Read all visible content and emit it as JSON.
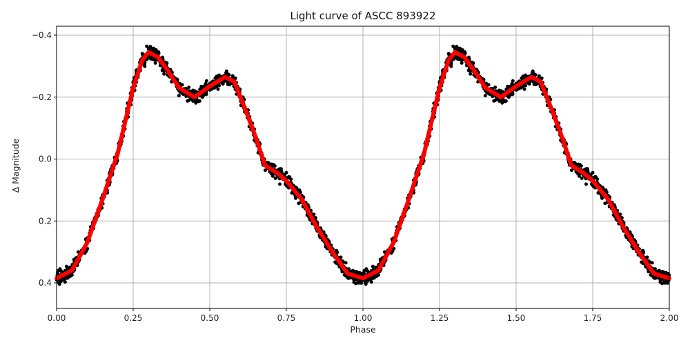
{
  "chart_data": {
    "type": "scatter",
    "title": "Light curve of ASCC 893922",
    "xlabel": "Phase",
    "ylabel": "Δ Magnitude",
    "xlim": [
      0.0,
      2.0
    ],
    "ylim": [
      0.47,
      -0.43
    ],
    "y_inverted": true,
    "grid": true,
    "legend": null,
    "x_ticks": [
      0.0,
      0.25,
      0.5,
      0.75,
      1.0,
      1.25,
      1.5,
      1.75,
      2.0
    ],
    "x_tick_labels": [
      "0.00",
      "0.25",
      "0.50",
      "0.75",
      "1.00",
      "1.25",
      "1.50",
      "1.75",
      "2.00"
    ],
    "y_ticks": [
      -0.4,
      -0.2,
      0.0,
      0.2,
      0.4
    ],
    "y_tick_labels": [
      "−0.4",
      "−0.2",
      "0.0",
      "0.2",
      "0.4"
    ],
    "series": [
      {
        "name": "observations",
        "kind": "scatter-with-errorbars",
        "color": "#000000",
        "scatter_width": 0.02,
        "note": "dense black points following the model curve, repeated over two phase cycles"
      },
      {
        "name": "model",
        "kind": "line",
        "color": "#ff0000",
        "linewidth": 6,
        "x": [
          0.0,
          0.05,
          0.1,
          0.15,
          0.2,
          0.25,
          0.28,
          0.3,
          0.33,
          0.36,
          0.4,
          0.45,
          0.5,
          0.55,
          0.58,
          0.62,
          0.65,
          0.68,
          0.72,
          0.75,
          0.8,
          0.85,
          0.9,
          0.95,
          1.0,
          1.05,
          1.1,
          1.15,
          1.2,
          1.25,
          1.28,
          1.3,
          1.33,
          1.36,
          1.4,
          1.45,
          1.5,
          1.55,
          1.58,
          1.62,
          1.65,
          1.68,
          1.72,
          1.75,
          1.8,
          1.85,
          1.9,
          1.95,
          2.0
        ],
        "values": [
          0.385,
          0.36,
          0.27,
          0.13,
          -0.02,
          -0.23,
          -0.32,
          -0.345,
          -0.33,
          -0.29,
          -0.23,
          -0.2,
          -0.235,
          -0.265,
          -0.25,
          -0.15,
          -0.07,
          0.02,
          0.045,
          0.07,
          0.13,
          0.22,
          0.3,
          0.37,
          0.385,
          0.36,
          0.27,
          0.13,
          -0.02,
          -0.23,
          -0.32,
          -0.345,
          -0.33,
          -0.29,
          -0.23,
          -0.2,
          -0.235,
          -0.265,
          -0.25,
          -0.15,
          -0.07,
          0.02,
          0.045,
          0.07,
          0.13,
          0.22,
          0.3,
          0.37,
          0.385
        ]
      }
    ],
    "colors": {
      "grid": "#b0b0b0",
      "axes": "#000000",
      "points": "#000000",
      "model": "#ff0000"
    }
  }
}
